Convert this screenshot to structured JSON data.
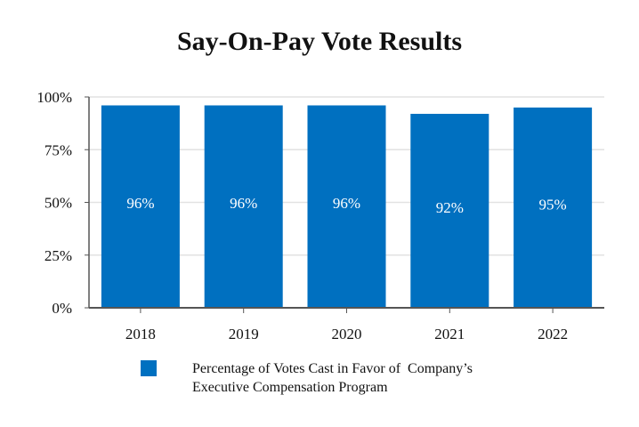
{
  "chart_data": {
    "type": "bar",
    "title": "Say-On-Pay Vote Results",
    "categories": [
      "2018",
      "2019",
      "2020",
      "2021",
      "2022"
    ],
    "values": [
      96,
      96,
      96,
      92,
      95
    ],
    "data_labels": [
      "96%",
      "96%",
      "96%",
      "92%",
      "95%"
    ],
    "ylim": [
      0,
      100
    ],
    "yticks": [
      0,
      25,
      50,
      75,
      100
    ],
    "ytick_labels": [
      "0%",
      "25%",
      "50%",
      "75%",
      "100%"
    ],
    "xlabel": "",
    "ylabel": "",
    "grid": true,
    "legend_position": "bottom-left",
    "series": [
      {
        "name": "Percentage of Votes Cast in Favor of  Company’s\nExecutive Compensation Program",
        "color": "#0070C0",
        "values": [
          96,
          96,
          96,
          92,
          95
        ]
      }
    ]
  }
}
